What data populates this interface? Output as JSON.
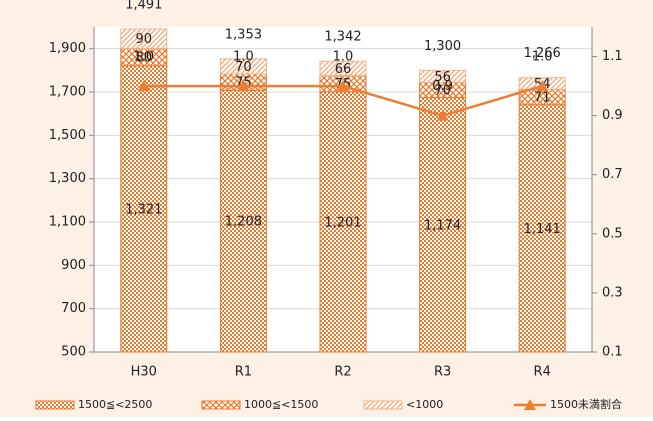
{
  "chart_data": {
    "type": "bar",
    "categories": [
      "H30",
      "R1",
      "R2",
      "R3",
      "R4"
    ],
    "series": [
      {
        "name": "1500≦<2500",
        "color": "#e8782a",
        "values": [
          1321,
          1208,
          1201,
          1174,
          1141
        ],
        "value_labels": [
          "1,321",
          "1,208",
          "1,201",
          "1,174",
          "1,141"
        ]
      },
      {
        "name": "1000≦<1500",
        "color": "#e8782a",
        "values": [
          80,
          75,
          75,
          70,
          71
        ]
      },
      {
        "name": "<1000",
        "color": "#f4b183",
        "values": [
          90,
          70,
          66,
          56,
          54
        ]
      },
      {
        "name": "1500未満割合",
        "type": "line",
        "axis": "y2",
        "color": "#ed7d31",
        "values": [
          1.0,
          1.0,
          1.0,
          0.9,
          1.0
        ],
        "value_labels": [
          "1.0",
          "1.0",
          "1.0",
          "0.9",
          "1.0"
        ]
      }
    ],
    "totals": [
      1491,
      1353,
      1342,
      1300,
      1266
    ],
    "total_labels": [
      "1,491",
      "1,353",
      "1,342",
      "1,300",
      "1,266"
    ],
    "ylim": [
      500,
      2000
    ],
    "yticks": [
      {
        "value": 500,
        "label": "500"
      },
      {
        "value": 700,
        "label": "700"
      },
      {
        "value": 900,
        "label": "900"
      },
      {
        "value": 1100,
        "label": "1,100"
      },
      {
        "value": 1300,
        "label": "1,300"
      },
      {
        "value": 1500,
        "label": "1,500"
      },
      {
        "value": 1700,
        "label": "1,700"
      },
      {
        "value": 1900,
        "label": "1,900"
      }
    ],
    "y2lim": [
      0.1,
      1.2
    ],
    "y2ticks": [
      0.1,
      0.3,
      0.5,
      0.7,
      0.9,
      1.1
    ],
    "grid": true,
    "legend": "bottom"
  }
}
